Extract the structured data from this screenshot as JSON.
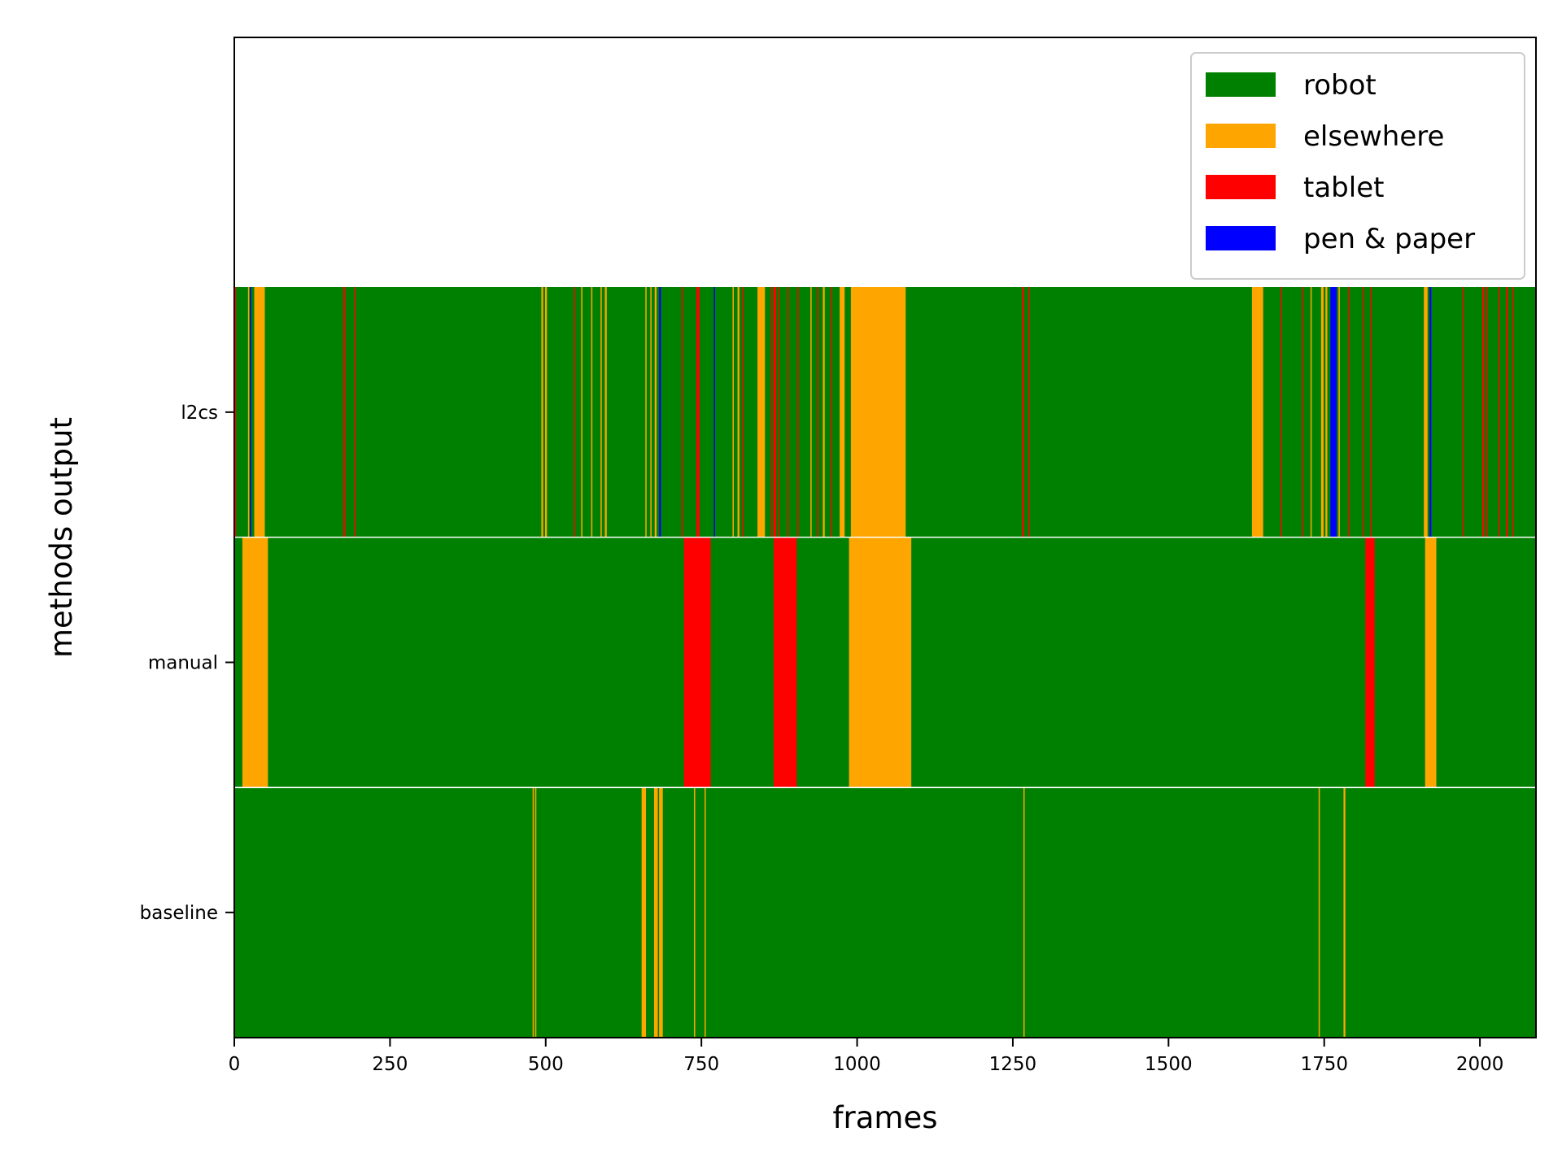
{
  "chart_data": {
    "type": "timeline",
    "xlabel": "frames",
    "ylabel": "methods output",
    "xlim": [
      0,
      2090
    ],
    "x_ticks": [
      0,
      250,
      500,
      750,
      1000,
      1250,
      1500,
      1750,
      2000
    ],
    "x_tick_labels": [
      "0",
      "250",
      "500",
      "750",
      "1000",
      "1250",
      "1500",
      "1750",
      "2000"
    ],
    "legend_position": "top-right",
    "categories": [
      {
        "name": "robot",
        "color": "#008000"
      },
      {
        "name": "elsewhere",
        "color": "#FFA500"
      },
      {
        "name": "tablet",
        "color": "#FF0000"
      },
      {
        "name": "pen & paper",
        "color": "#0000FF"
      }
    ],
    "default_category": "robot",
    "rows": [
      {
        "name": "l2cs",
        "segments": [
          {
            "start": 0,
            "end": 3,
            "category": "tablet"
          },
          {
            "start": 22,
            "end": 24,
            "category": "elsewhere"
          },
          {
            "start": 25,
            "end": 27,
            "category": "pen & paper"
          },
          {
            "start": 32,
            "end": 49,
            "category": "elsewhere"
          },
          {
            "start": 175,
            "end": 178,
            "category": "tablet"
          },
          {
            "start": 192,
            "end": 194,
            "category": "tablet"
          },
          {
            "start": 493,
            "end": 496,
            "category": "elsewhere"
          },
          {
            "start": 499,
            "end": 502,
            "category": "elsewhere"
          },
          {
            "start": 545,
            "end": 547,
            "category": "tablet"
          },
          {
            "start": 557,
            "end": 559,
            "category": "elsewhere"
          },
          {
            "start": 573,
            "end": 575,
            "category": "elsewhere"
          },
          {
            "start": 588,
            "end": 590,
            "category": "elsewhere"
          },
          {
            "start": 595,
            "end": 598,
            "category": "elsewhere"
          },
          {
            "start": 660,
            "end": 662,
            "category": "elsewhere"
          },
          {
            "start": 668,
            "end": 670,
            "category": "elsewhere"
          },
          {
            "start": 675,
            "end": 678,
            "category": "elsewhere"
          },
          {
            "start": 682,
            "end": 685,
            "category": "pen & paper"
          },
          {
            "start": 718,
            "end": 720,
            "category": "tablet"
          },
          {
            "start": 742,
            "end": 747,
            "category": "tablet"
          },
          {
            "start": 770,
            "end": 772,
            "category": "pen & paper"
          },
          {
            "start": 800,
            "end": 802,
            "category": "elsewhere"
          },
          {
            "start": 808,
            "end": 811,
            "category": "elsewhere"
          },
          {
            "start": 815,
            "end": 817,
            "category": "tablet"
          },
          {
            "start": 840,
            "end": 852,
            "category": "elsewhere"
          },
          {
            "start": 862,
            "end": 864,
            "category": "tablet"
          },
          {
            "start": 866,
            "end": 870,
            "category": "tablet"
          },
          {
            "start": 873,
            "end": 875,
            "category": "tablet"
          },
          {
            "start": 888,
            "end": 890,
            "category": "tablet"
          },
          {
            "start": 904,
            "end": 906,
            "category": "tablet"
          },
          {
            "start": 925,
            "end": 927,
            "category": "elsewhere"
          },
          {
            "start": 936,
            "end": 938,
            "category": "tablet"
          },
          {
            "start": 945,
            "end": 948,
            "category": "elsewhere"
          },
          {
            "start": 958,
            "end": 960,
            "category": "tablet"
          },
          {
            "start": 972,
            "end": 980,
            "category": "elsewhere"
          },
          {
            "start": 990,
            "end": 1078,
            "category": "elsewhere"
          },
          {
            "start": 1265,
            "end": 1268,
            "category": "tablet"
          },
          {
            "start": 1275,
            "end": 1277,
            "category": "tablet"
          },
          {
            "start": 1634,
            "end": 1652,
            "category": "elsewhere"
          },
          {
            "start": 1680,
            "end": 1682,
            "category": "tablet"
          },
          {
            "start": 1714,
            "end": 1716,
            "category": "tablet"
          },
          {
            "start": 1728,
            "end": 1730,
            "category": "elsewhere"
          },
          {
            "start": 1745,
            "end": 1749,
            "category": "elsewhere"
          },
          {
            "start": 1752,
            "end": 1755,
            "category": "elsewhere"
          },
          {
            "start": 1760,
            "end": 1770,
            "category": "pen & paper"
          },
          {
            "start": 1773,
            "end": 1775,
            "category": "elsewhere"
          },
          {
            "start": 1788,
            "end": 1790,
            "category": "tablet"
          },
          {
            "start": 1812,
            "end": 1814,
            "category": "tablet"
          },
          {
            "start": 1824,
            "end": 1826,
            "category": "tablet"
          },
          {
            "start": 1910,
            "end": 1916,
            "category": "elsewhere"
          },
          {
            "start": 1919,
            "end": 1922,
            "category": "pen & paper"
          },
          {
            "start": 1972,
            "end": 1974,
            "category": "tablet"
          },
          {
            "start": 2004,
            "end": 2007,
            "category": "tablet"
          },
          {
            "start": 2010,
            "end": 2012,
            "category": "tablet"
          },
          {
            "start": 2030,
            "end": 2032,
            "category": "tablet"
          },
          {
            "start": 2042,
            "end": 2045,
            "category": "tablet"
          },
          {
            "start": 2052,
            "end": 2054,
            "category": "tablet"
          }
        ]
      },
      {
        "name": "manual",
        "segments": [
          {
            "start": 13,
            "end": 54,
            "category": "elsewhere"
          },
          {
            "start": 722,
            "end": 765,
            "category": "tablet"
          },
          {
            "start": 866,
            "end": 903,
            "category": "tablet"
          },
          {
            "start": 987,
            "end": 1087,
            "category": "elsewhere"
          },
          {
            "start": 1816,
            "end": 1831,
            "category": "tablet"
          },
          {
            "start": 1912,
            "end": 1930,
            "category": "elsewhere"
          }
        ]
      },
      {
        "name": "baseline",
        "segments": [
          {
            "start": 479,
            "end": 481,
            "category": "elsewhere"
          },
          {
            "start": 483,
            "end": 485,
            "category": "elsewhere"
          },
          {
            "start": 654,
            "end": 661,
            "category": "elsewhere"
          },
          {
            "start": 674,
            "end": 680,
            "category": "elsewhere"
          },
          {
            "start": 682,
            "end": 688,
            "category": "elsewhere"
          },
          {
            "start": 738,
            "end": 740,
            "category": "elsewhere"
          },
          {
            "start": 755,
            "end": 757,
            "category": "elsewhere"
          },
          {
            "start": 1267,
            "end": 1269,
            "category": "elsewhere"
          },
          {
            "start": 1741,
            "end": 1743,
            "category": "elsewhere"
          },
          {
            "start": 1781,
            "end": 1784,
            "category": "elsewhere"
          }
        ]
      }
    ]
  }
}
